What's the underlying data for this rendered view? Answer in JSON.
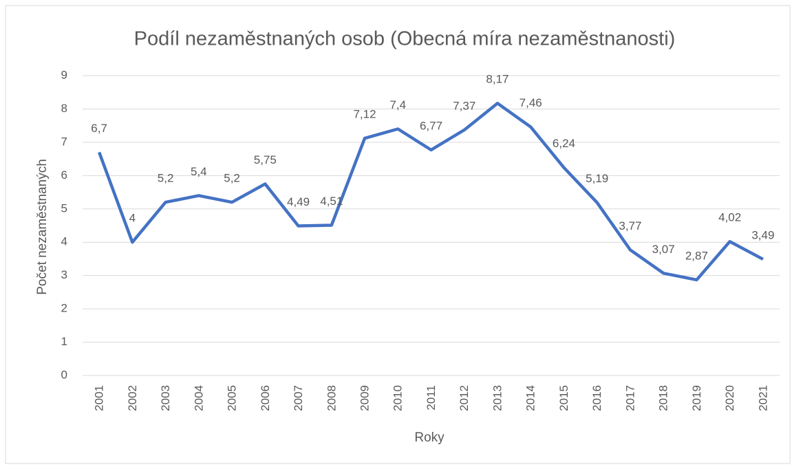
{
  "chart_data": {
    "type": "line",
    "title": "Podíl nezaměstnaných osob (Obecná míra nezaměstnanosti)",
    "x_label": "Roky",
    "y_label": "Počet nezaměstnaných",
    "categories": [
      "2001",
      "2002",
      "2003",
      "2004",
      "2005",
      "2006",
      "2007",
      "2008",
      "2009",
      "2010",
      "2011",
      "2012",
      "2013",
      "2014",
      "2015",
      "2016",
      "2017",
      "2018",
      "2019",
      "2020",
      "2021"
    ],
    "series": [
      {
        "name": "Podíl nezaměstnaných osob",
        "color": "#4472c4",
        "values": [
          6.7,
          4,
          5.2,
          5.4,
          5.2,
          5.75,
          4.49,
          4.51,
          7.12,
          7.4,
          6.77,
          7.37,
          8.17,
          7.46,
          6.24,
          5.19,
          3.77,
          3.07,
          2.87,
          4.02,
          3.49
        ],
        "value_labels": [
          "6,7",
          "4",
          "5,2",
          "5,4",
          "5,2",
          "5,75",
          "4,49",
          "4,51",
          "7,12",
          "7,4",
          "6,77",
          "7,37",
          "8,17",
          "7,46",
          "6,24",
          "5,19",
          "3,77",
          "3,07",
          "2,87",
          "4,02",
          "3,49"
        ]
      }
    ],
    "ylim": [
      0,
      9
    ],
    "yticks": [
      0,
      1,
      2,
      3,
      4,
      5,
      6,
      7,
      8,
      9
    ],
    "grid": true
  }
}
